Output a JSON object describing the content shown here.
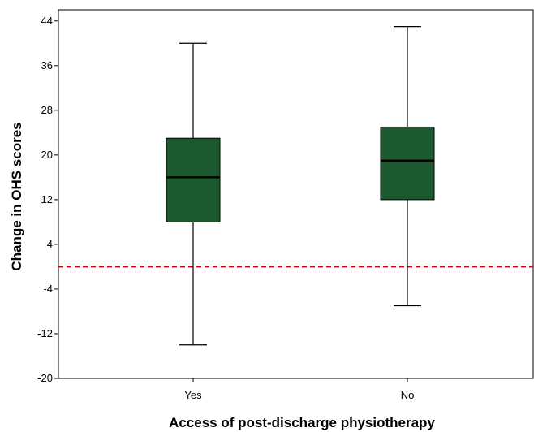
{
  "chart_data": {
    "type": "boxplot",
    "xlabel": "Access of post-discharge physiotherapy",
    "ylabel": "Change in OHS scores",
    "categories": [
      "Yes",
      "No"
    ],
    "boxes": [
      {
        "category": "Yes",
        "min": -14,
        "q1": 8,
        "median": 16,
        "q3": 23,
        "max": 40
      },
      {
        "category": "No",
        "min": -7,
        "q1": 12,
        "median": 19,
        "q3": 25,
        "max": 43
      }
    ],
    "ylim": [
      -20,
      46
    ],
    "yticks": [
      -20,
      -12,
      -4,
      4,
      12,
      20,
      28,
      36,
      44
    ],
    "reference_line": {
      "y": 0,
      "style": "dashed",
      "color": "#cc0000"
    },
    "box_color": "#1e5a30",
    "grid": false
  }
}
